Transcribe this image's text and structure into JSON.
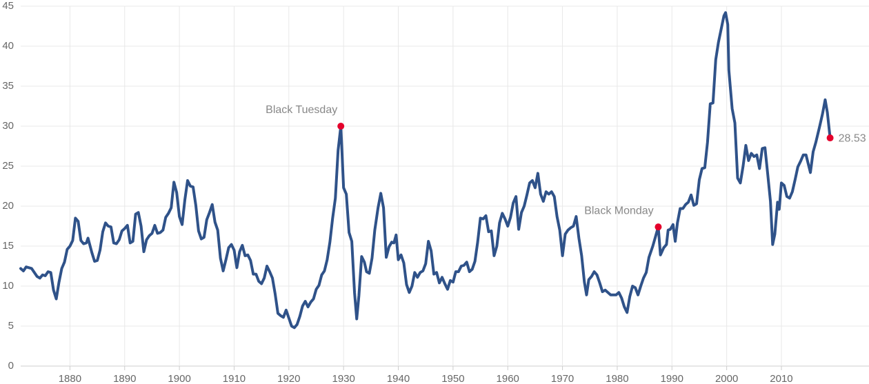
{
  "chart_data": {
    "type": "line",
    "x": [
      1871,
      1871.5,
      1872,
      1873,
      1874,
      1874.5,
      1875,
      1875.5,
      1876,
      1876.5,
      1877,
      1877.5,
      1878,
      1878.5,
      1879,
      1879.5,
      1880,
      1880.5,
      1881,
      1881.5,
      1882,
      1882.5,
      1883,
      1883.3,
      1884,
      1884.5,
      1885,
      1885.5,
      1886,
      1886.5,
      1887,
      1887.5,
      1888,
      1888.5,
      1889,
      1889.5,
      1890,
      1890.5,
      1891,
      1891.5,
      1892,
      1892.5,
      1893,
      1893.5,
      1894,
      1894.5,
      1895,
      1895.5,
      1896,
      1896.5,
      1897,
      1897.5,
      1898,
      1898.5,
      1899,
      1899.5,
      1900,
      1900.5,
      1901,
      1901.5,
      1902,
      1902.5,
      1903,
      1903.5,
      1904,
      1904.5,
      1905,
      1905.5,
      1906,
      1906.5,
      1907,
      1907.5,
      1908,
      1908.5,
      1909,
      1909.5,
      1910,
      1910.5,
      1911,
      1911.5,
      1912,
      1912.5,
      1913,
      1913.5,
      1914,
      1914.5,
      1915,
      1915.5,
      1916,
      1916.5,
      1917,
      1917.5,
      1918,
      1918.5,
      1919,
      1919.5,
      1920,
      1920.5,
      1921,
      1921.5,
      1922,
      1922.5,
      1923,
      1923.5,
      1924,
      1924.5,
      1925,
      1925.5,
      1926,
      1926.5,
      1927,
      1927.5,
      1928,
      1928.5,
      1929,
      1929.5,
      1930,
      1930.5,
      1931,
      1931.5,
      1932,
      1932.4,
      1932.8,
      1933.3,
      1933.8,
      1934.2,
      1934.7,
      1935.2,
      1935.7,
      1936.3,
      1936.8,
      1937.3,
      1937.8,
      1938.3,
      1938.8,
      1939.2,
      1939.6,
      1940,
      1940.5,
      1941,
      1941.5,
      1942,
      1942.5,
      1943,
      1943.5,
      1944,
      1944.5,
      1945,
      1945.5,
      1946,
      1946.5,
      1947,
      1947.5,
      1948,
      1948.5,
      1949,
      1949.5,
      1950,
      1950.5,
      1951,
      1951.5,
      1952,
      1952.5,
      1953,
      1953.5,
      1954,
      1954.5,
      1955,
      1955.5,
      1956,
      1956.5,
      1957,
      1957.5,
      1958,
      1958.5,
      1959,
      1959.5,
      1960,
      1960.5,
      1961,
      1961.5,
      1962,
      1962.5,
      1963,
      1963.5,
      1964,
      1964.5,
      1965,
      1965.5,
      1966,
      1966.5,
      1967,
      1967.5,
      1968,
      1968.5,
      1969,
      1969.5,
      1970,
      1970.5,
      1971,
      1971.5,
      1972,
      1972.5,
      1973,
      1973.5,
      1974,
      1974.4,
      1974.8,
      1975.3,
      1975.8,
      1976.3,
      1976.8,
      1977.3,
      1977.8,
      1978.3,
      1978.8,
      1979.3,
      1979.8,
      1980.3,
      1980.8,
      1981.3,
      1981.8,
      1982.3,
      1982.8,
      1983.3,
      1983.8,
      1984.3,
      1984.8,
      1985.3,
      1985.8,
      1986.5,
      1987.5,
      1987.9,
      1988.5,
      1989,
      1989.3,
      1989.7,
      1990.2,
      1990.6,
      1991,
      1991.5,
      1992,
      1992.5,
      1993,
      1993.5,
      1994,
      1994.5,
      1995,
      1995.5,
      1996,
      1996.5,
      1997,
      1997.5,
      1998,
      1998.5,
      1999.5,
      1999.8,
      2000.2,
      2000.4,
      2001,
      2001.5,
      2002,
      2002.5,
      2003,
      2003.5,
      2004,
      2004.5,
      2005,
      2005.5,
      2006,
      2006.5,
      2007,
      2007.5,
      2008,
      2008.4,
      2008.8,
      2009.3,
      2009.6,
      2010,
      2010.5,
      2011,
      2011.5,
      2012,
      2012.5,
      2013,
      2013.5,
      2014,
      2014.5,
      2015.3,
      2015.8,
      2016.3,
      2017,
      2017.5,
      2018,
      2018.4,
      2018.9
    ],
    "series": [
      {
        "color": "#2f5289",
        "values": [
          12.2,
          11.9,
          12.4,
          12.2,
          11.2,
          11.0,
          11.4,
          11.3,
          11.8,
          11.7,
          9.5,
          8.4,
          10.5,
          12.2,
          13.0,
          14.6,
          15.0,
          15.7,
          18.5,
          18.1,
          15.7,
          15.3,
          15.4,
          16.0,
          14.2,
          13.1,
          13.2,
          14.5,
          16.8,
          17.9,
          17.5,
          17.4,
          15.4,
          15.3,
          15.8,
          16.9,
          17.2,
          17.6,
          15.4,
          15.6,
          19.0,
          19.2,
          17.5,
          14.3,
          15.8,
          16.3,
          16.6,
          17.6,
          16.6,
          16.7,
          17.0,
          18.6,
          19.1,
          19.8,
          23.0,
          21.7,
          18.7,
          17.7,
          20.8,
          23.2,
          22.5,
          22.4,
          20.1,
          16.9,
          15.9,
          16.1,
          18.3,
          19.2,
          20.2,
          18.0,
          17.0,
          13.5,
          11.9,
          13.3,
          14.8,
          15.2,
          14.5,
          12.3,
          14.3,
          15.1,
          13.8,
          13.9,
          13.2,
          11.5,
          11.5,
          10.6,
          10.3,
          11.0,
          12.5,
          11.8,
          11.0,
          9.0,
          6.6,
          6.3,
          6.1,
          7.0,
          6.0,
          5.0,
          4.8,
          5.2,
          6.2,
          7.5,
          8.1,
          7.4,
          8.0,
          8.4,
          9.6,
          10.1,
          11.4,
          11.9,
          13.3,
          15.5,
          18.5,
          21.0,
          27.0,
          30.0,
          22.3,
          21.5,
          16.7,
          15.6,
          9.2,
          5.9,
          8.8,
          13.7,
          13.0,
          11.8,
          11.6,
          13.5,
          17.0,
          19.8,
          21.6,
          19.8,
          13.6,
          14.9,
          15.5,
          15.4,
          16.4,
          13.3,
          13.9,
          12.9,
          10.2,
          9.2,
          10.0,
          11.7,
          11.1,
          11.7,
          11.9,
          12.8,
          15.6,
          14.4,
          11.5,
          11.7,
          10.4,
          11.1,
          10.3,
          9.6,
          10.7,
          10.5,
          11.8,
          11.8,
          12.5,
          12.6,
          13.0,
          11.8,
          12.1,
          13.1,
          15.5,
          18.5,
          18.4,
          18.8,
          16.8,
          16.9,
          13.8,
          15.0,
          17.9,
          19.1,
          18.4,
          17.5,
          18.6,
          20.4,
          21.2,
          17.1,
          19.2,
          20.0,
          21.4,
          22.9,
          23.2,
          22.3,
          24.1,
          21.5,
          20.6,
          21.8,
          21.5,
          21.8,
          21.2,
          18.7,
          17.0,
          13.8,
          16.5,
          17.0,
          17.3,
          17.5,
          18.7,
          16.0,
          13.8,
          10.5,
          8.9,
          10.8,
          11.2,
          11.8,
          11.4,
          10.4,
          9.3,
          9.5,
          9.2,
          8.9,
          8.9,
          8.9,
          9.2,
          8.5,
          7.4,
          6.7,
          8.7,
          10.0,
          9.8,
          8.9,
          10.0,
          11.0,
          11.7,
          13.6,
          15.0,
          17.4,
          13.9,
          14.8,
          15.2,
          17.0,
          17.1,
          17.7,
          15.6,
          17.9,
          19.7,
          19.7,
          20.2,
          20.5,
          21.4,
          20.1,
          20.3,
          23.3,
          24.7,
          24.8,
          28.0,
          32.8,
          32.9,
          38.3,
          40.5,
          43.8,
          44.2,
          42.7,
          37.0,
          32.2,
          30.4,
          23.5,
          22.9,
          25.0,
          27.6,
          25.7,
          26.6,
          26.2,
          26.4,
          24.7,
          27.2,
          27.3,
          24.0,
          20.6,
          15.2,
          16.5,
          20.5,
          19.6,
          22.9,
          22.6,
          21.2,
          21.0,
          21.8,
          23.3,
          24.9,
          25.6,
          26.4,
          26.4,
          24.2,
          26.8,
          28.0,
          30.0,
          31.5,
          33.3,
          31.7,
          28.53
        ]
      }
    ],
    "annotations": [
      {
        "label": "Black Tuesday",
        "x": 1929.5,
        "y": 30.0,
        "color": "#e4002b"
      },
      {
        "label": "Black Monday",
        "x": 1987.5,
        "y": 17.4,
        "color": "#e4002b"
      },
      {
        "label": "28.53",
        "x": 2018.9,
        "y": 28.53,
        "color": "#e4002b"
      }
    ],
    "xlim": [
      1871,
      2019
    ],
    "ylim": [
      0,
      45
    ],
    "xticks": [
      1880,
      1890,
      1900,
      1910,
      1920,
      1930,
      1940,
      1950,
      1960,
      1970,
      1980,
      1990,
      2000,
      2010
    ],
    "yticks": [
      0,
      5,
      10,
      15,
      20,
      25,
      30,
      35,
      40,
      45
    ],
    "grid": true
  }
}
